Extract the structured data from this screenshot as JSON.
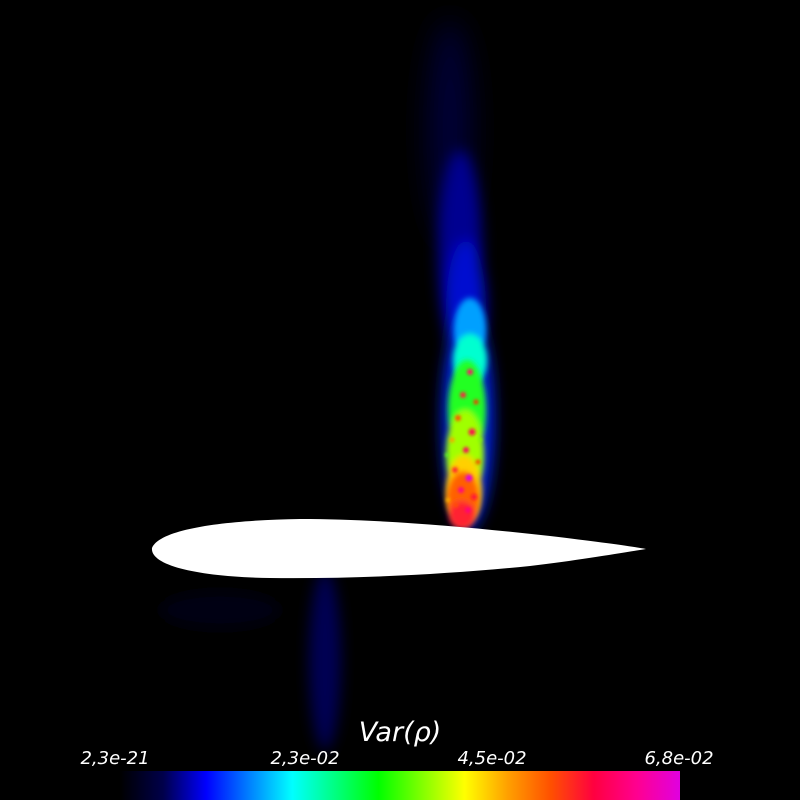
{
  "colorbar": {
    "title": "Var(ρ)",
    "labels": [
      "2,3e-21",
      "2,3e-02",
      "4,5e-02",
      "6,8e-02"
    ],
    "colormap": [
      "#000000",
      "#00004a",
      "#0000ff",
      "#0080ff",
      "#00ffff",
      "#00ff80",
      "#00ff00",
      "#80ff00",
      "#ffff00",
      "#ffa000",
      "#ff5000",
      "#ff0040",
      "#ff0090",
      "#e000e0"
    ]
  },
  "colors": {
    "background": "#000000",
    "airfoil": "#ffffff"
  }
}
